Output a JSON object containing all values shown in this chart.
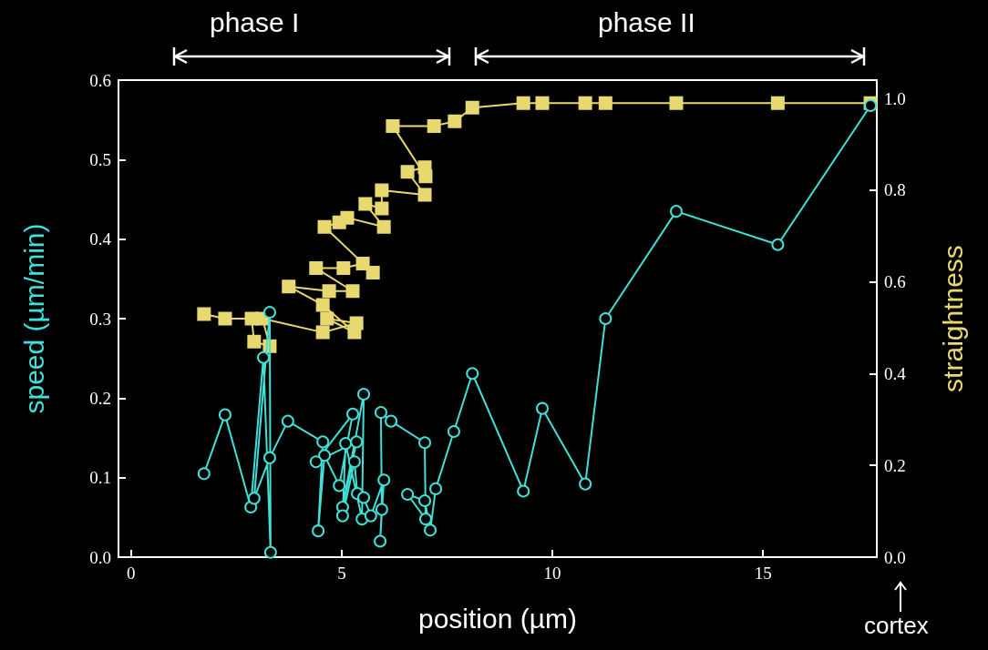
{
  "chart_data": {
    "type": "line",
    "xlabel": "position (µm)",
    "ylabel": "speed (µm/min)",
    "y2label": "straightness",
    "annotations": [
      "phase I",
      "phase II",
      "cortex"
    ],
    "xlim": [
      -0.3,
      17.7
    ],
    "xticks": [
      0,
      5,
      10,
      15
    ],
    "ylim": [
      0,
      0.6
    ],
    "yticks": [
      {
        "value": 0,
        "label": "0.0"
      },
      0.1,
      0.2,
      0.3,
      0.4,
      0.5,
      0.6
    ],
    "y2lim": [
      0,
      1.04
    ],
    "y2ticks": [
      {
        "value": 0,
        "label": "0.0"
      },
      0.2,
      0.4,
      0.6,
      0.8,
      {
        "value": 1,
        "label": "1.0"
      }
    ],
    "line_style": "solid",
    "series": [
      {
        "color": "#e8d870",
        "axis": "y2",
        "marker": "square",
        "x": [
          1.73,
          2.23,
          2.86,
          2.92,
          3.29,
          3.12,
          4.55,
          5.35,
          4.65,
          5.3,
          4.55,
          3.74,
          4.7,
          5.26,
          4.39,
          5.04,
          5.5,
          5.74,
          4.59,
          4.94,
          5.13,
          6.0,
          5.56,
          5.95,
          5.95,
          6.97,
          6.56,
          6.97,
          6.99,
          6.21,
          7.19,
          7.68,
          8.1,
          9.31,
          9.76,
          10.78,
          11.26,
          12.94,
          15.35,
          17.55
        ],
        "values": [
          0.53,
          0.52,
          0.52,
          0.47,
          0.46,
          0.52,
          0.49,
          0.51,
          0.52,
          0.49,
          0.55,
          0.59,
          0.58,
          0.58,
          0.63,
          0.63,
          0.64,
          0.62,
          0.72,
          0.73,
          0.74,
          0.72,
          0.77,
          0.76,
          0.8,
          0.79,
          0.84,
          0.85,
          0.83,
          0.94,
          0.94,
          0.95,
          0.98,
          0.99,
          0.99,
          0.99,
          0.99,
          0.99,
          0.99,
          0.99
        ]
      },
      {
        "color": "#40e0d8",
        "marker": "circle",
        "x": [
          1.73,
          2.23,
          2.84,
          3.14,
          3.31,
          3.29,
          2.92,
          3.29,
          3.72,
          4.55,
          4.44,
          4.59,
          4.94,
          5.26,
          4.39,
          5.35,
          5.02,
          5.52,
          5.48,
          5.09,
          5.02,
          5.3,
          5.37,
          5.52,
          5.69,
          6.0,
          5.91,
          5.95,
          5.93,
          6.17,
          6.97,
          6.99,
          6.56,
          6.97,
          7.1,
          7.23,
          7.66,
          8.1,
          9.31,
          9.76,
          10.78,
          11.26,
          12.94,
          15.35,
          17.55
        ],
        "values": [
          0.105,
          0.179,
          0.063,
          0.251,
          0.006,
          0.308,
          0.074,
          0.125,
          0.171,
          0.145,
          0.033,
          0.128,
          0.09,
          0.18,
          0.12,
          0.145,
          0.063,
          0.205,
          0.048,
          0.143,
          0.052,
          0.12,
          0.08,
          0.075,
          0.052,
          0.097,
          0.02,
          0.06,
          0.182,
          0.171,
          0.144,
          0.048,
          0.079,
          0.071,
          0.034,
          0.086,
          0.158,
          0.231,
          0.083,
          0.187,
          0.092,
          0.3,
          0.435,
          0.393,
          0.568
        ]
      }
    ]
  }
}
